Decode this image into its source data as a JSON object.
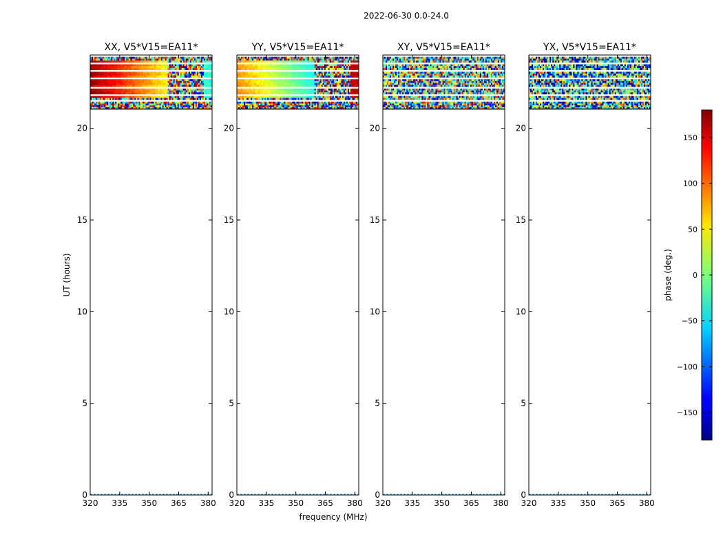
{
  "suptitle": "2022-06-30 0.0-24.0",
  "chart_data": {
    "type": "heatmap",
    "panels": [
      {
        "title": "XX, V5*V15=EA11*",
        "pattern": "xx"
      },
      {
        "title": "YY, V5*V15=EA11*",
        "pattern": "yy"
      },
      {
        "title": "XY, V5*V15=EA11*",
        "pattern": "xy"
      },
      {
        "title": "YX, V5*V15=EA11*",
        "pattern": "yx"
      }
    ],
    "xlabel": "frequency (MHz)",
    "ylabel": "UT (hours)",
    "xlim": [
      320,
      382
    ],
    "ylim": [
      0,
      24
    ],
    "xticks": [
      320,
      335,
      350,
      365,
      380
    ],
    "yticks": [
      0,
      5,
      10,
      15,
      20
    ],
    "data_time_range_hours": [
      21.05,
      23.9
    ],
    "colorbar": {
      "label": "phase (deg.)",
      "range": [
        -180,
        180
      ],
      "ticks": [
        150,
        100,
        50,
        0,
        -50,
        -100,
        -150
      ],
      "colormap": "jet"
    }
  }
}
